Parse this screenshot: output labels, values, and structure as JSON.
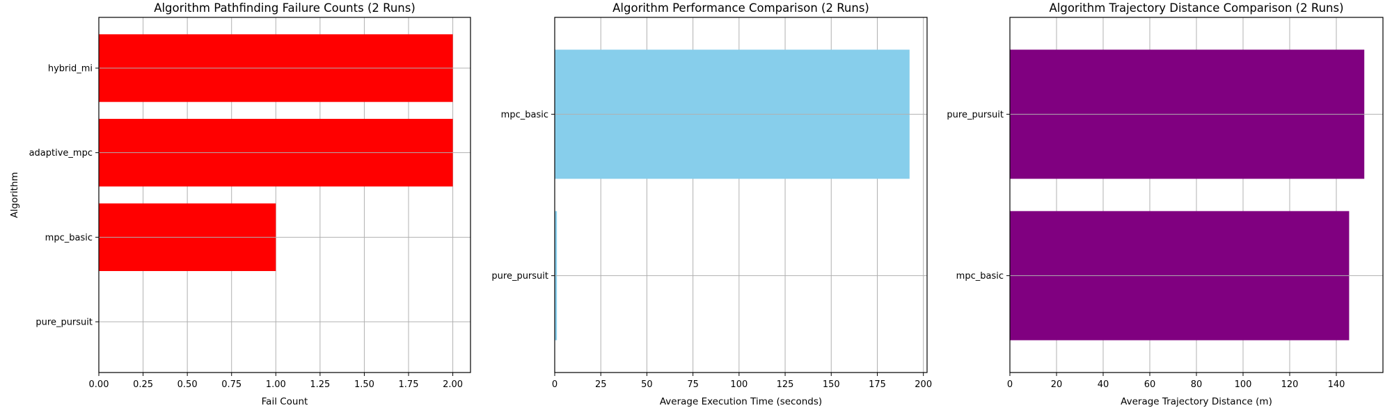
{
  "chart_data": [
    {
      "type": "bar",
      "orientation": "horizontal",
      "title": "Algorithm Pathfinding Failure Counts (2 Runs)",
      "xlabel": "Fail Count",
      "ylabel": "Algorithm",
      "categories": [
        "pure_pursuit",
        "mpc_basic",
        "adaptive_mpc",
        "hybrid_mi"
      ],
      "values": [
        0,
        1,
        2,
        2
      ],
      "color": "#ff0000",
      "xlim": [
        0,
        2.1
      ],
      "xticks": [
        "0.00",
        "0.25",
        "0.50",
        "0.75",
        "1.00",
        "1.25",
        "1.50",
        "1.75",
        "2.00"
      ],
      "grid": true
    },
    {
      "type": "bar",
      "orientation": "horizontal",
      "title": "Algorithm Performance Comparison (2 Runs)",
      "xlabel": "Average Execution Time (seconds)",
      "ylabel": "",
      "categories": [
        "pure_pursuit",
        "mpc_basic"
      ],
      "values": [
        1.2,
        192.5
      ],
      "color": "#87ceeb",
      "xlim": [
        0,
        202
      ],
      "xticks": [
        "0",
        "25",
        "50",
        "75",
        "100",
        "125",
        "150",
        "175",
        "200"
      ],
      "grid": true
    },
    {
      "type": "bar",
      "orientation": "horizontal",
      "title": "Algorithm Trajectory Distance Comparison (2 Runs)",
      "xlabel": "Average Trajectory Distance (m)",
      "ylabel": "",
      "categories": [
        "mpc_basic",
        "pure_pursuit"
      ],
      "values": [
        145.5,
        152
      ],
      "color": "#800080",
      "xlim": [
        0,
        160
      ],
      "xticks": [
        "0",
        "20",
        "40",
        "60",
        "80",
        "100",
        "120",
        "140"
      ],
      "grid": true
    }
  ]
}
